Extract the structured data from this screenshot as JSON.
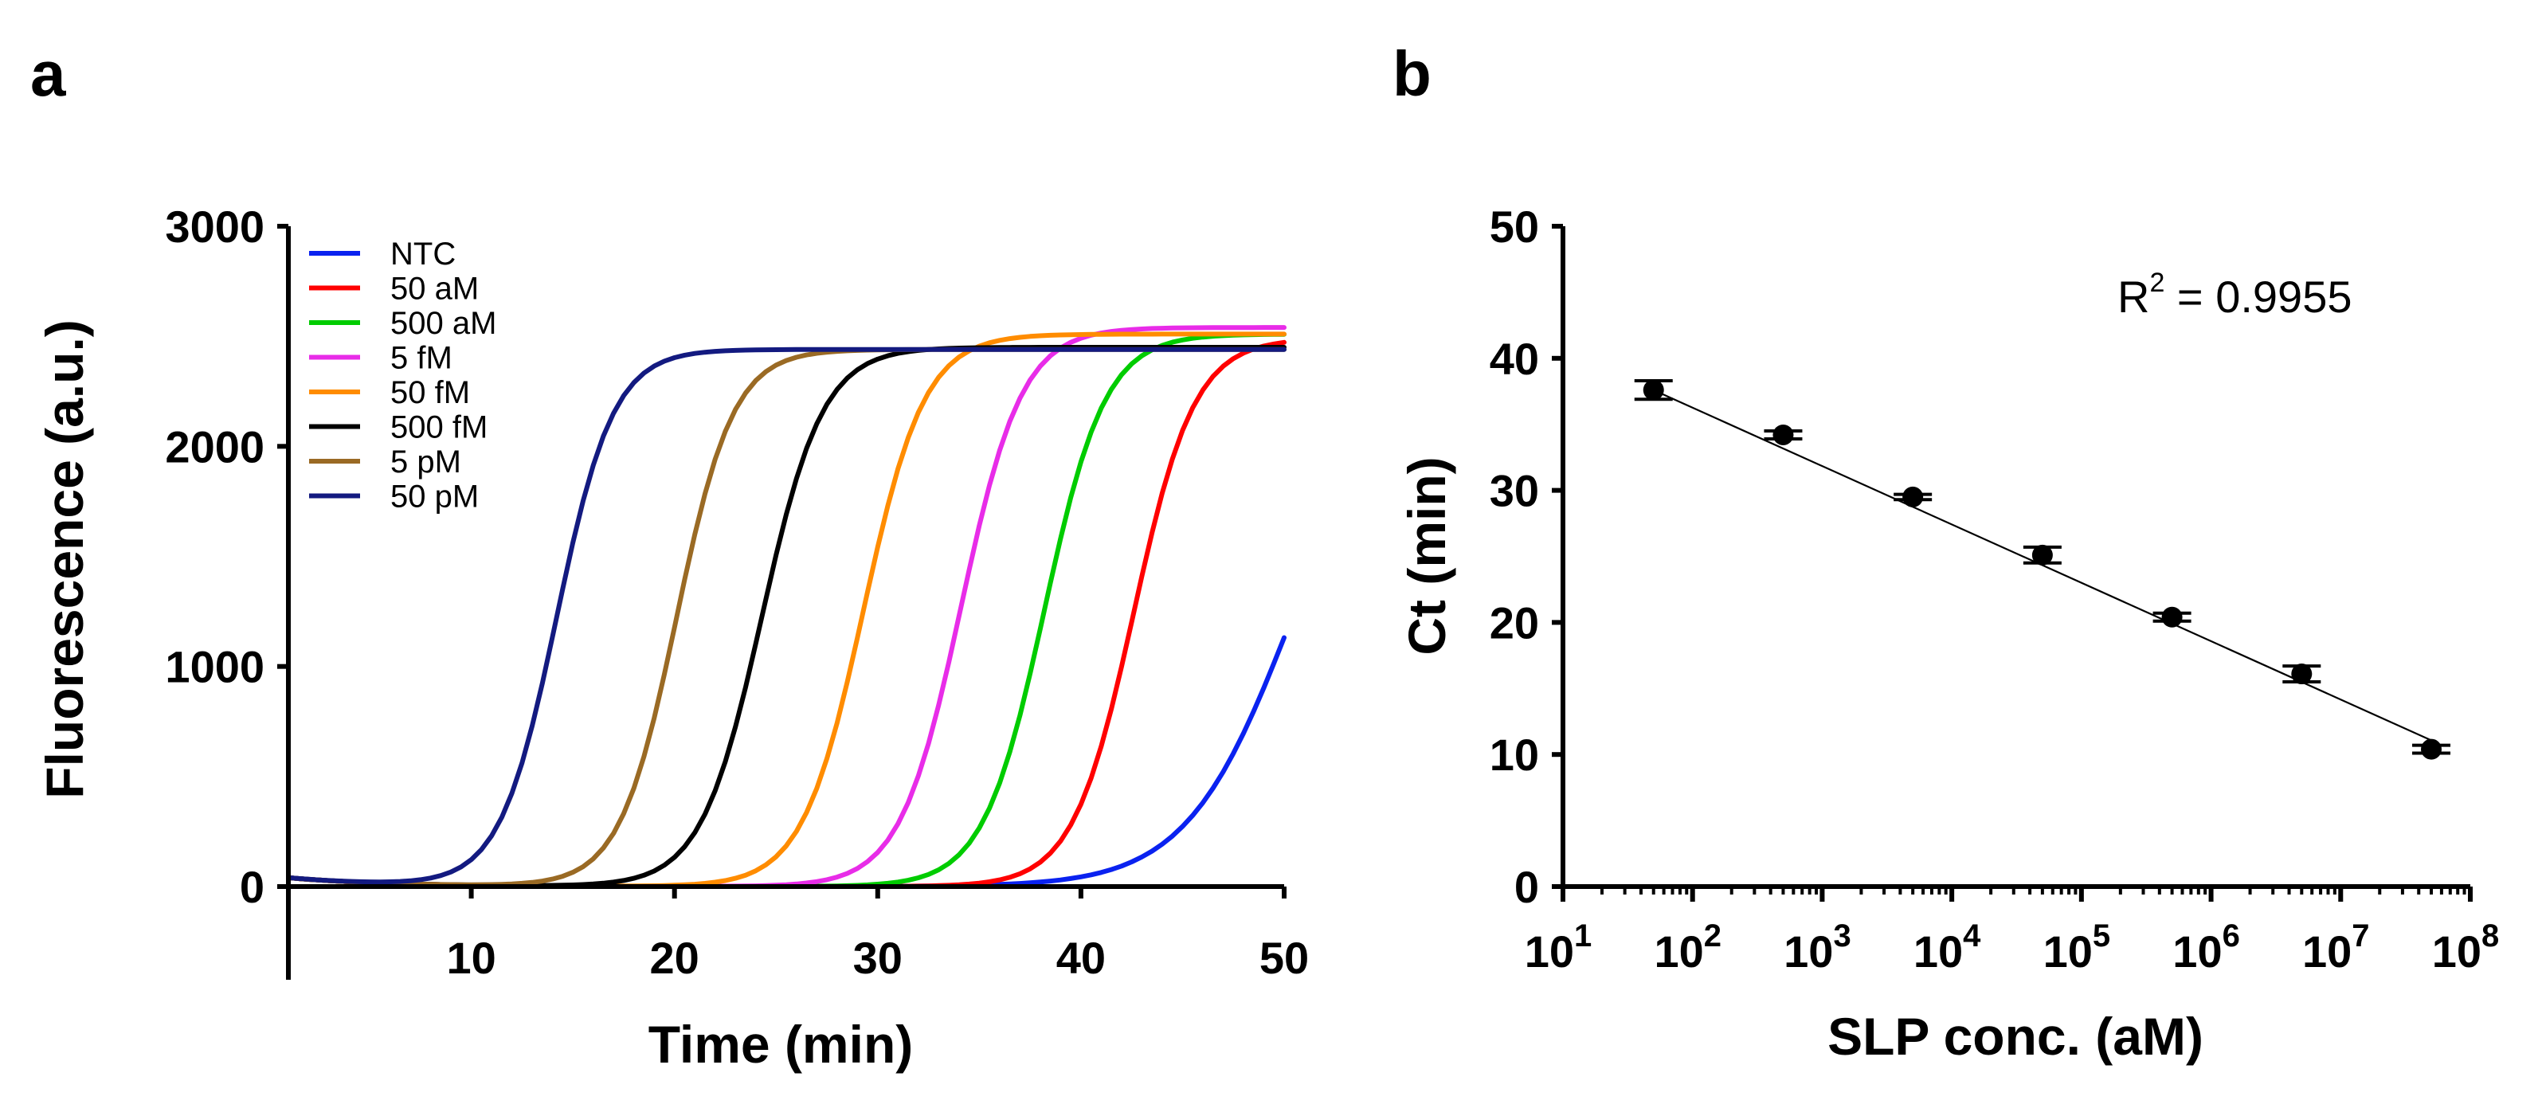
{
  "chart_data": [
    {
      "panel": "a",
      "type": "line",
      "title": "",
      "xlabel": "Time (min)",
      "ylabel": "Fluorescence (a.u.)",
      "xlim": [
        1,
        50
      ],
      "ylim": [
        -400,
        3000
      ],
      "xticks": [
        10,
        20,
        30,
        40,
        50
      ],
      "yticks": [
        0,
        1000,
        2000,
        3000
      ],
      "xtick_labels": [
        "10",
        "20",
        "30",
        "40",
        "50"
      ],
      "ytick_labels": [
        "0",
        "1000",
        "2000",
        "3000"
      ],
      "legend_position": "top-left",
      "curve_model": "sigmoid: baseline + (plateau - baseline) / (1 + exp(-(t - midpoint) / steepness))",
      "series": [
        {
          "name": "NTC",
          "color": "#0a22f0",
          "baseline": 0,
          "plateau": 2450,
          "midpoint": 50.4,
          "steepness": 2.6
        },
        {
          "name": "50 aM",
          "color": "#ff0000",
          "baseline": 0,
          "plateau": 2490,
          "midpoint": 42.6,
          "steepness": 1.5
        },
        {
          "name": "500 aM",
          "color": "#00cc00",
          "baseline": 0,
          "plateau": 2510,
          "midpoint": 38.2,
          "steepness": 1.5
        },
        {
          "name": "5 fM",
          "color": "#e82ce8",
          "baseline": 0,
          "plateau": 2540,
          "midpoint": 34.1,
          "steepness": 1.5
        },
        {
          "name": "50 fM",
          "color": "#ff8c00",
          "baseline": 0,
          "plateau": 2510,
          "midpoint": 29.3,
          "steepness": 1.5
        },
        {
          "name": "500 fM",
          "color": "#000000",
          "baseline": 0,
          "plateau": 2450,
          "midpoint": 24.3,
          "steepness": 1.5
        },
        {
          "name": "5 pM",
          "color": "#9a6a24",
          "baseline": 0,
          "plateau": 2440,
          "midpoint": 20.1,
          "steepness": 1.4
        },
        {
          "name": "50 pM",
          "color": "#131a80",
          "baseline": 0,
          "plateau": 2440,
          "midpoint": 14.2,
          "steepness": 1.4
        }
      ]
    },
    {
      "panel": "b",
      "type": "scatter",
      "title": "",
      "xlabel": "SLP conc. (aM)",
      "ylabel": "Ct (min)",
      "xscale": "log10",
      "xlim_exponent": [
        1,
        8
      ],
      "ylim": [
        0,
        50
      ],
      "xtick_bases": [
        "10",
        "10",
        "10",
        "10",
        "10",
        "10",
        "10",
        "10"
      ],
      "xtick_exponents": [
        "1",
        "2",
        "3",
        "4",
        "5",
        "6",
        "7",
        "8"
      ],
      "ytick_labels": [
        "0",
        "10",
        "20",
        "30",
        "40",
        "50"
      ],
      "annotation": {
        "prefix": "R",
        "superscript": "2",
        "suffix": " = 0.9955"
      },
      "points": [
        {
          "x_exponent": 1.699,
          "y": 37.6,
          "err": 0.7
        },
        {
          "x_exponent": 2.699,
          "y": 34.2,
          "err": 0.3
        },
        {
          "x_exponent": 3.699,
          "y": 29.5,
          "err": 0.2
        },
        {
          "x_exponent": 4.699,
          "y": 25.1,
          "err": 0.6
        },
        {
          "x_exponent": 5.699,
          "y": 20.4,
          "err": 0.3
        },
        {
          "x_exponent": 6.699,
          "y": 16.1,
          "err": 0.6
        },
        {
          "x_exponent": 7.699,
          "y": 10.4,
          "err": 0.3
        }
      ],
      "fit_line": {
        "slope": -4.42,
        "intercept": 45.1
      }
    }
  ],
  "panels": {
    "a": {
      "letter": "a"
    },
    "b": {
      "letter": "b"
    }
  }
}
